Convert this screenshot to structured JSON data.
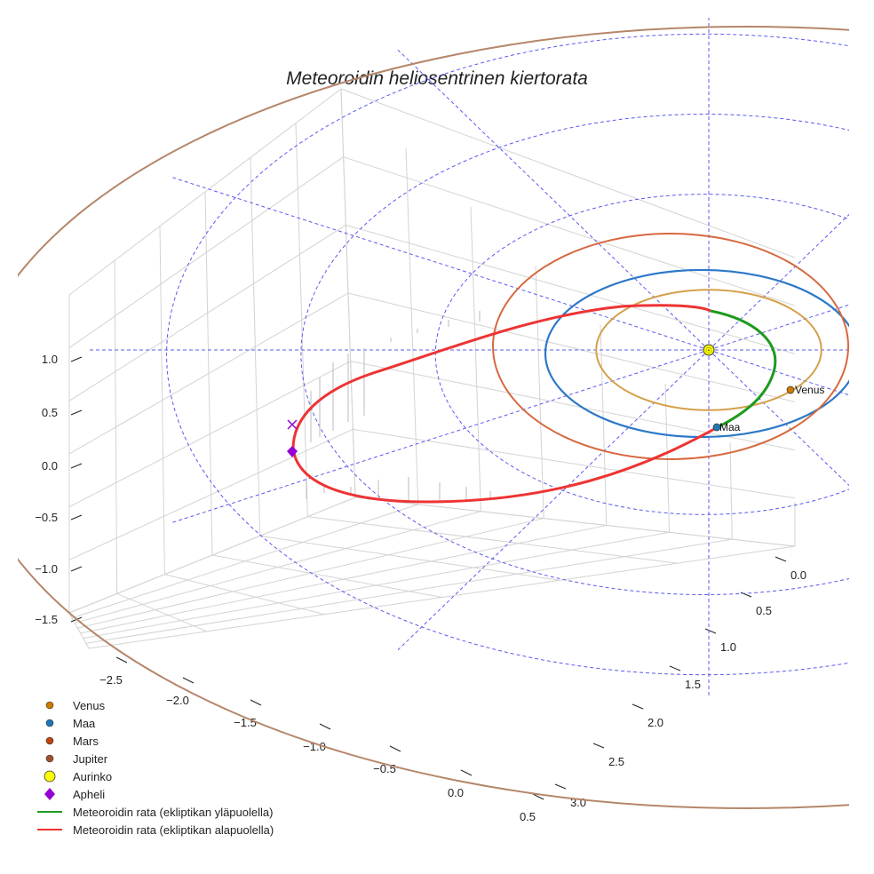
{
  "chart_data": {
    "type": "line",
    "title": "Meteoroidin heliosentrinen kiertorata",
    "axes": {
      "x_ticks": [
        "−2.5",
        "−2.0",
        "−1.5",
        "−1.0",
        "−0.5",
        "0.0",
        "0.5"
      ],
      "y_ticks": [
        "0.0",
        "0.5",
        "1.0",
        "1.5",
        "2.0",
        "2.5",
        "3.0"
      ],
      "z_ticks": [
        "1.0",
        "0.5",
        "0.0",
        "−0.5",
        "−1.0",
        "−1.5"
      ],
      "xlim": [
        -2.7,
        0.7
      ],
      "ylim": [
        -0.1,
        3.2
      ],
      "zlim": [
        -1.7,
        1.4
      ],
      "grid": true
    },
    "planets": [
      {
        "name": "Venus",
        "orbit_radius_au": 0.72,
        "color": "#d4a04c",
        "marker_color": "#cc7a00",
        "label": "Venus"
      },
      {
        "name": "Maa",
        "orbit_radius_au": 1.0,
        "color": "#2c78c8",
        "marker_color": "#1f77b4",
        "label": "Maa"
      },
      {
        "name": "Mars",
        "orbit_radius_au": 1.52,
        "color": "#d6683e",
        "marker_color": "#c1440e"
      },
      {
        "name": "Jupiter",
        "orbit_radius_au": 5.2,
        "color": "#b5866a",
        "marker_color": "#a0522d"
      }
    ],
    "sun": {
      "name": "Aurinko",
      "color": "#ffff00"
    },
    "aphelion": {
      "name": "Apheli",
      "color": "#9400d3"
    },
    "series": [
      {
        "name": "Meteoroidin rata (ekliptikan yläpuolella)",
        "color": "#1e9a1e"
      },
      {
        "name": "Meteoroidin rata (ekliptikan alapuolella)",
        "color": "#ee3333"
      }
    ],
    "legend_position": "bottom-left"
  }
}
